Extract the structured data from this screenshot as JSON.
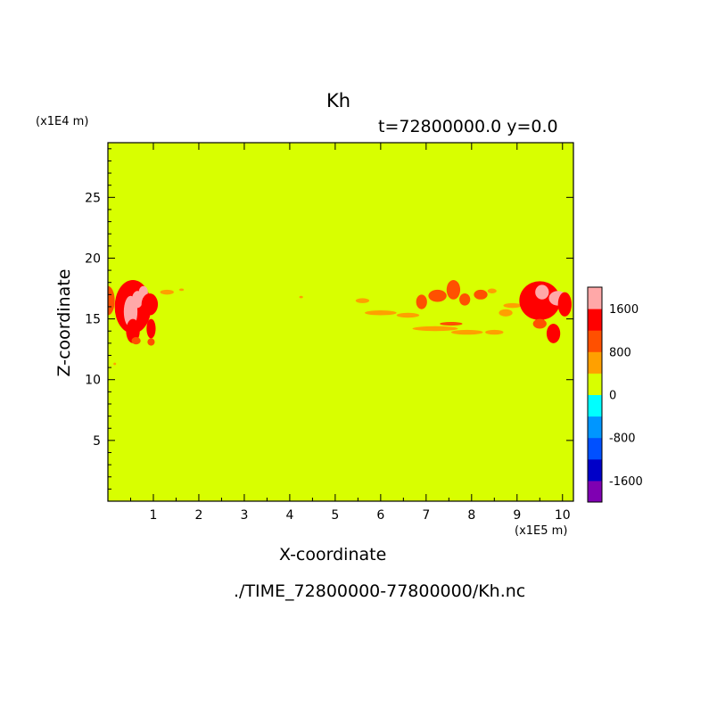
{
  "chart_data": {
    "type": "heatmap",
    "title": "Kh",
    "subtitle": "t=72800000.0 y=0.0",
    "xlabel": "X-coordinate",
    "ylabel": "Z-coordinate",
    "x_unit_label": "(x1E5 m)",
    "y_unit_label": "(x1E4 m)",
    "source_file": "./TIME_72800000-77800000/Kh.nc",
    "xlim": [
      0,
      10.24
    ],
    "ylim": [
      0,
      29.5
    ],
    "x_ticks": [
      1,
      2,
      3,
      4,
      5,
      6,
      7,
      8,
      9,
      10
    ],
    "y_ticks": [
      5,
      10,
      15,
      20,
      25
    ],
    "background_value_color": "#d8ff00",
    "colorbar": {
      "levels": [
        -2000,
        -1600,
        -1200,
        -800,
        -400,
        0,
        400,
        800,
        1200,
        1600,
        2000
      ],
      "colors": [
        "#7f00b2",
        "#0000c8",
        "#0050ff",
        "#0096ff",
        "#00ffff",
        "#d8ff00",
        "#ffa000",
        "#ff5000",
        "#ff0000",
        "#ffa8a8"
      ],
      "tick_labels": [
        "-1600",
        "-800",
        "0",
        "800",
        "1600"
      ],
      "tick_values": [
        -1600,
        -800,
        0,
        800,
        1600
      ]
    },
    "anomaly_regions": [
      {
        "x": 0.0,
        "z": 16.5,
        "rx": 0.15,
        "rz": 1.2,
        "value": 1000
      },
      {
        "x": 0.55,
        "z": 16.0,
        "rx": 0.4,
        "rz": 2.2,
        "value": 1400
      },
      {
        "x": 0.5,
        "z": 15.6,
        "rx": 0.15,
        "rz": 1.3,
        "value": 2000
      },
      {
        "x": 0.65,
        "z": 16.6,
        "rx": 0.12,
        "rz": 0.7,
        "value": 2000
      },
      {
        "x": 0.78,
        "z": 17.2,
        "rx": 0.1,
        "rz": 0.5,
        "value": 2000
      },
      {
        "x": 0.92,
        "z": 16.2,
        "rx": 0.18,
        "rz": 0.9,
        "value": 1400
      },
      {
        "x": 0.55,
        "z": 14.0,
        "rx": 0.15,
        "rz": 1.0,
        "value": 1200
      },
      {
        "x": 0.95,
        "z": 14.2,
        "rx": 0.1,
        "rz": 0.8,
        "value": 1200
      },
      {
        "x": 0.62,
        "z": 13.2,
        "rx": 0.1,
        "rz": 0.3,
        "value": 1000
      },
      {
        "x": 0.95,
        "z": 13.1,
        "rx": 0.08,
        "rz": 0.3,
        "value": 1000
      },
      {
        "x": 1.3,
        "z": 17.2,
        "rx": 0.15,
        "rz": 0.2,
        "value": 700
      },
      {
        "x": 1.62,
        "z": 17.4,
        "rx": 0.05,
        "rz": 0.1,
        "value": 700
      },
      {
        "x": 0.15,
        "z": 11.3,
        "rx": 0.03,
        "rz": 0.1,
        "value": 700
      },
      {
        "x": 4.25,
        "z": 16.8,
        "rx": 0.04,
        "rz": 0.1,
        "value": 700
      },
      {
        "x": 5.6,
        "z": 16.5,
        "rx": 0.15,
        "rz": 0.2,
        "value": 700
      },
      {
        "x": 6.0,
        "z": 15.5,
        "rx": 0.35,
        "rz": 0.2,
        "value": 700
      },
      {
        "x": 6.6,
        "z": 15.3,
        "rx": 0.25,
        "rz": 0.2,
        "value": 700
      },
      {
        "x": 6.9,
        "z": 16.4,
        "rx": 0.12,
        "rz": 0.6,
        "value": 1000
      },
      {
        "x": 7.25,
        "z": 16.9,
        "rx": 0.2,
        "rz": 0.5,
        "value": 1100
      },
      {
        "x": 7.6,
        "z": 17.4,
        "rx": 0.15,
        "rz": 0.8,
        "value": 800
      },
      {
        "x": 7.85,
        "z": 16.6,
        "rx": 0.12,
        "rz": 0.5,
        "value": 1100
      },
      {
        "x": 8.2,
        "z": 17.0,
        "rx": 0.15,
        "rz": 0.4,
        "value": 900
      },
      {
        "x": 8.45,
        "z": 17.3,
        "rx": 0.1,
        "rz": 0.2,
        "value": 700
      },
      {
        "x": 7.2,
        "z": 14.2,
        "rx": 0.5,
        "rz": 0.2,
        "value": 700
      },
      {
        "x": 7.9,
        "z": 13.9,
        "rx": 0.35,
        "rz": 0.2,
        "value": 700
      },
      {
        "x": 8.5,
        "z": 13.9,
        "rx": 0.2,
        "rz": 0.2,
        "value": 700
      },
      {
        "x": 7.55,
        "z": 14.6,
        "rx": 0.25,
        "rz": 0.15,
        "value": 900
      },
      {
        "x": 8.75,
        "z": 15.5,
        "rx": 0.15,
        "rz": 0.3,
        "value": 700
      },
      {
        "x": 8.9,
        "z": 16.1,
        "rx": 0.2,
        "rz": 0.2,
        "value": 700
      },
      {
        "x": 9.5,
        "z": 16.5,
        "rx": 0.45,
        "rz": 1.6,
        "value": 1400
      },
      {
        "x": 9.55,
        "z": 17.2,
        "rx": 0.15,
        "rz": 0.6,
        "value": 2000
      },
      {
        "x": 9.9,
        "z": 16.7,
        "rx": 0.2,
        "rz": 0.6,
        "value": 2000
      },
      {
        "x": 10.05,
        "z": 16.2,
        "rx": 0.15,
        "rz": 1.0,
        "value": 1300
      },
      {
        "x": 9.8,
        "z": 13.8,
        "rx": 0.15,
        "rz": 0.8,
        "value": 1300
      },
      {
        "x": 9.5,
        "z": 14.6,
        "rx": 0.15,
        "rz": 0.4,
        "value": 900
      }
    ]
  }
}
